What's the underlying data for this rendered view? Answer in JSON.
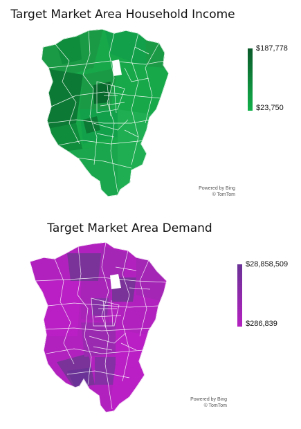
{
  "maps": [
    {
      "title": "Target Market Area Household Income",
      "legend": {
        "max": "$187,778",
        "min": "$23,750",
        "color_high": "#0a5a2a",
        "color_low": "#12b04a"
      },
      "attribution": {
        "line1": "Powered by Bing",
        "line2": "© TomTom"
      },
      "fill_palette": [
        "#17a84a",
        "#1b9a45",
        "#0f8c3c",
        "#0c7a34",
        "#08692c",
        "#12a14a",
        "#1fae52"
      ]
    },
    {
      "title": "Target Market Area Demand",
      "legend": {
        "max": "$28,858,509",
        "min": "$286,839",
        "color_high": "#6a3296",
        "color_low": "#b421c0"
      },
      "attribution": {
        "line1": "Powered by Bing",
        "line2": "© TomTom"
      },
      "fill_palette": [
        "#b121be",
        "#a824b8",
        "#a326b5",
        "#9a2bb0",
        "#8530a5",
        "#7a3399",
        "#b91fc4"
      ]
    }
  ]
}
